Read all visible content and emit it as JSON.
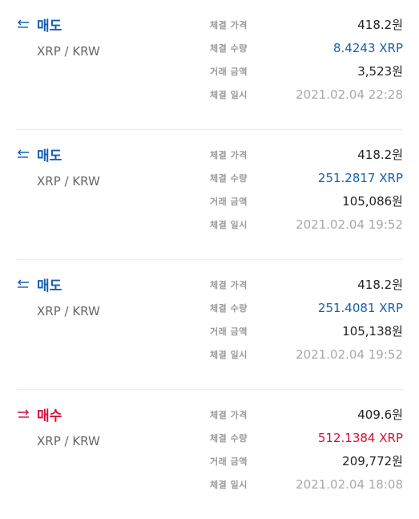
{
  "labels": {
    "price": "체결 가격",
    "quantity": "체결 수량",
    "amount": "거래 금액",
    "time": "체결 일시"
  },
  "colors": {
    "sell": "#1560ae",
    "buy": "#d60f3a"
  },
  "trades": [
    {
      "side": "매도",
      "type": "sell",
      "icon": "swap-left-arrow-icon",
      "pair": "XRP / KRW",
      "price": "418.2원",
      "quantity": "8.4243 XRP",
      "amount": "3,523원",
      "time": "2021.02.04 22:28"
    },
    {
      "side": "매도",
      "type": "sell",
      "icon": "swap-left-arrow-icon",
      "pair": "XRP / KRW",
      "price": "418.2원",
      "quantity": "251.2817 XRP",
      "amount": "105,086원",
      "time": "2021.02.04 19:52"
    },
    {
      "side": "매도",
      "type": "sell",
      "icon": "swap-left-arrow-icon",
      "pair": "XRP / KRW",
      "price": "418.2원",
      "quantity": "251.4081 XRP",
      "amount": "105,138원",
      "time": "2021.02.04 19:52"
    },
    {
      "side": "매수",
      "type": "buy",
      "icon": "swap-right-arrow-icon",
      "pair": "XRP / KRW",
      "price": "409.6원",
      "quantity": "512.1384 XRP",
      "amount": "209,772원",
      "time": "2021.02.04 18:08"
    }
  ]
}
